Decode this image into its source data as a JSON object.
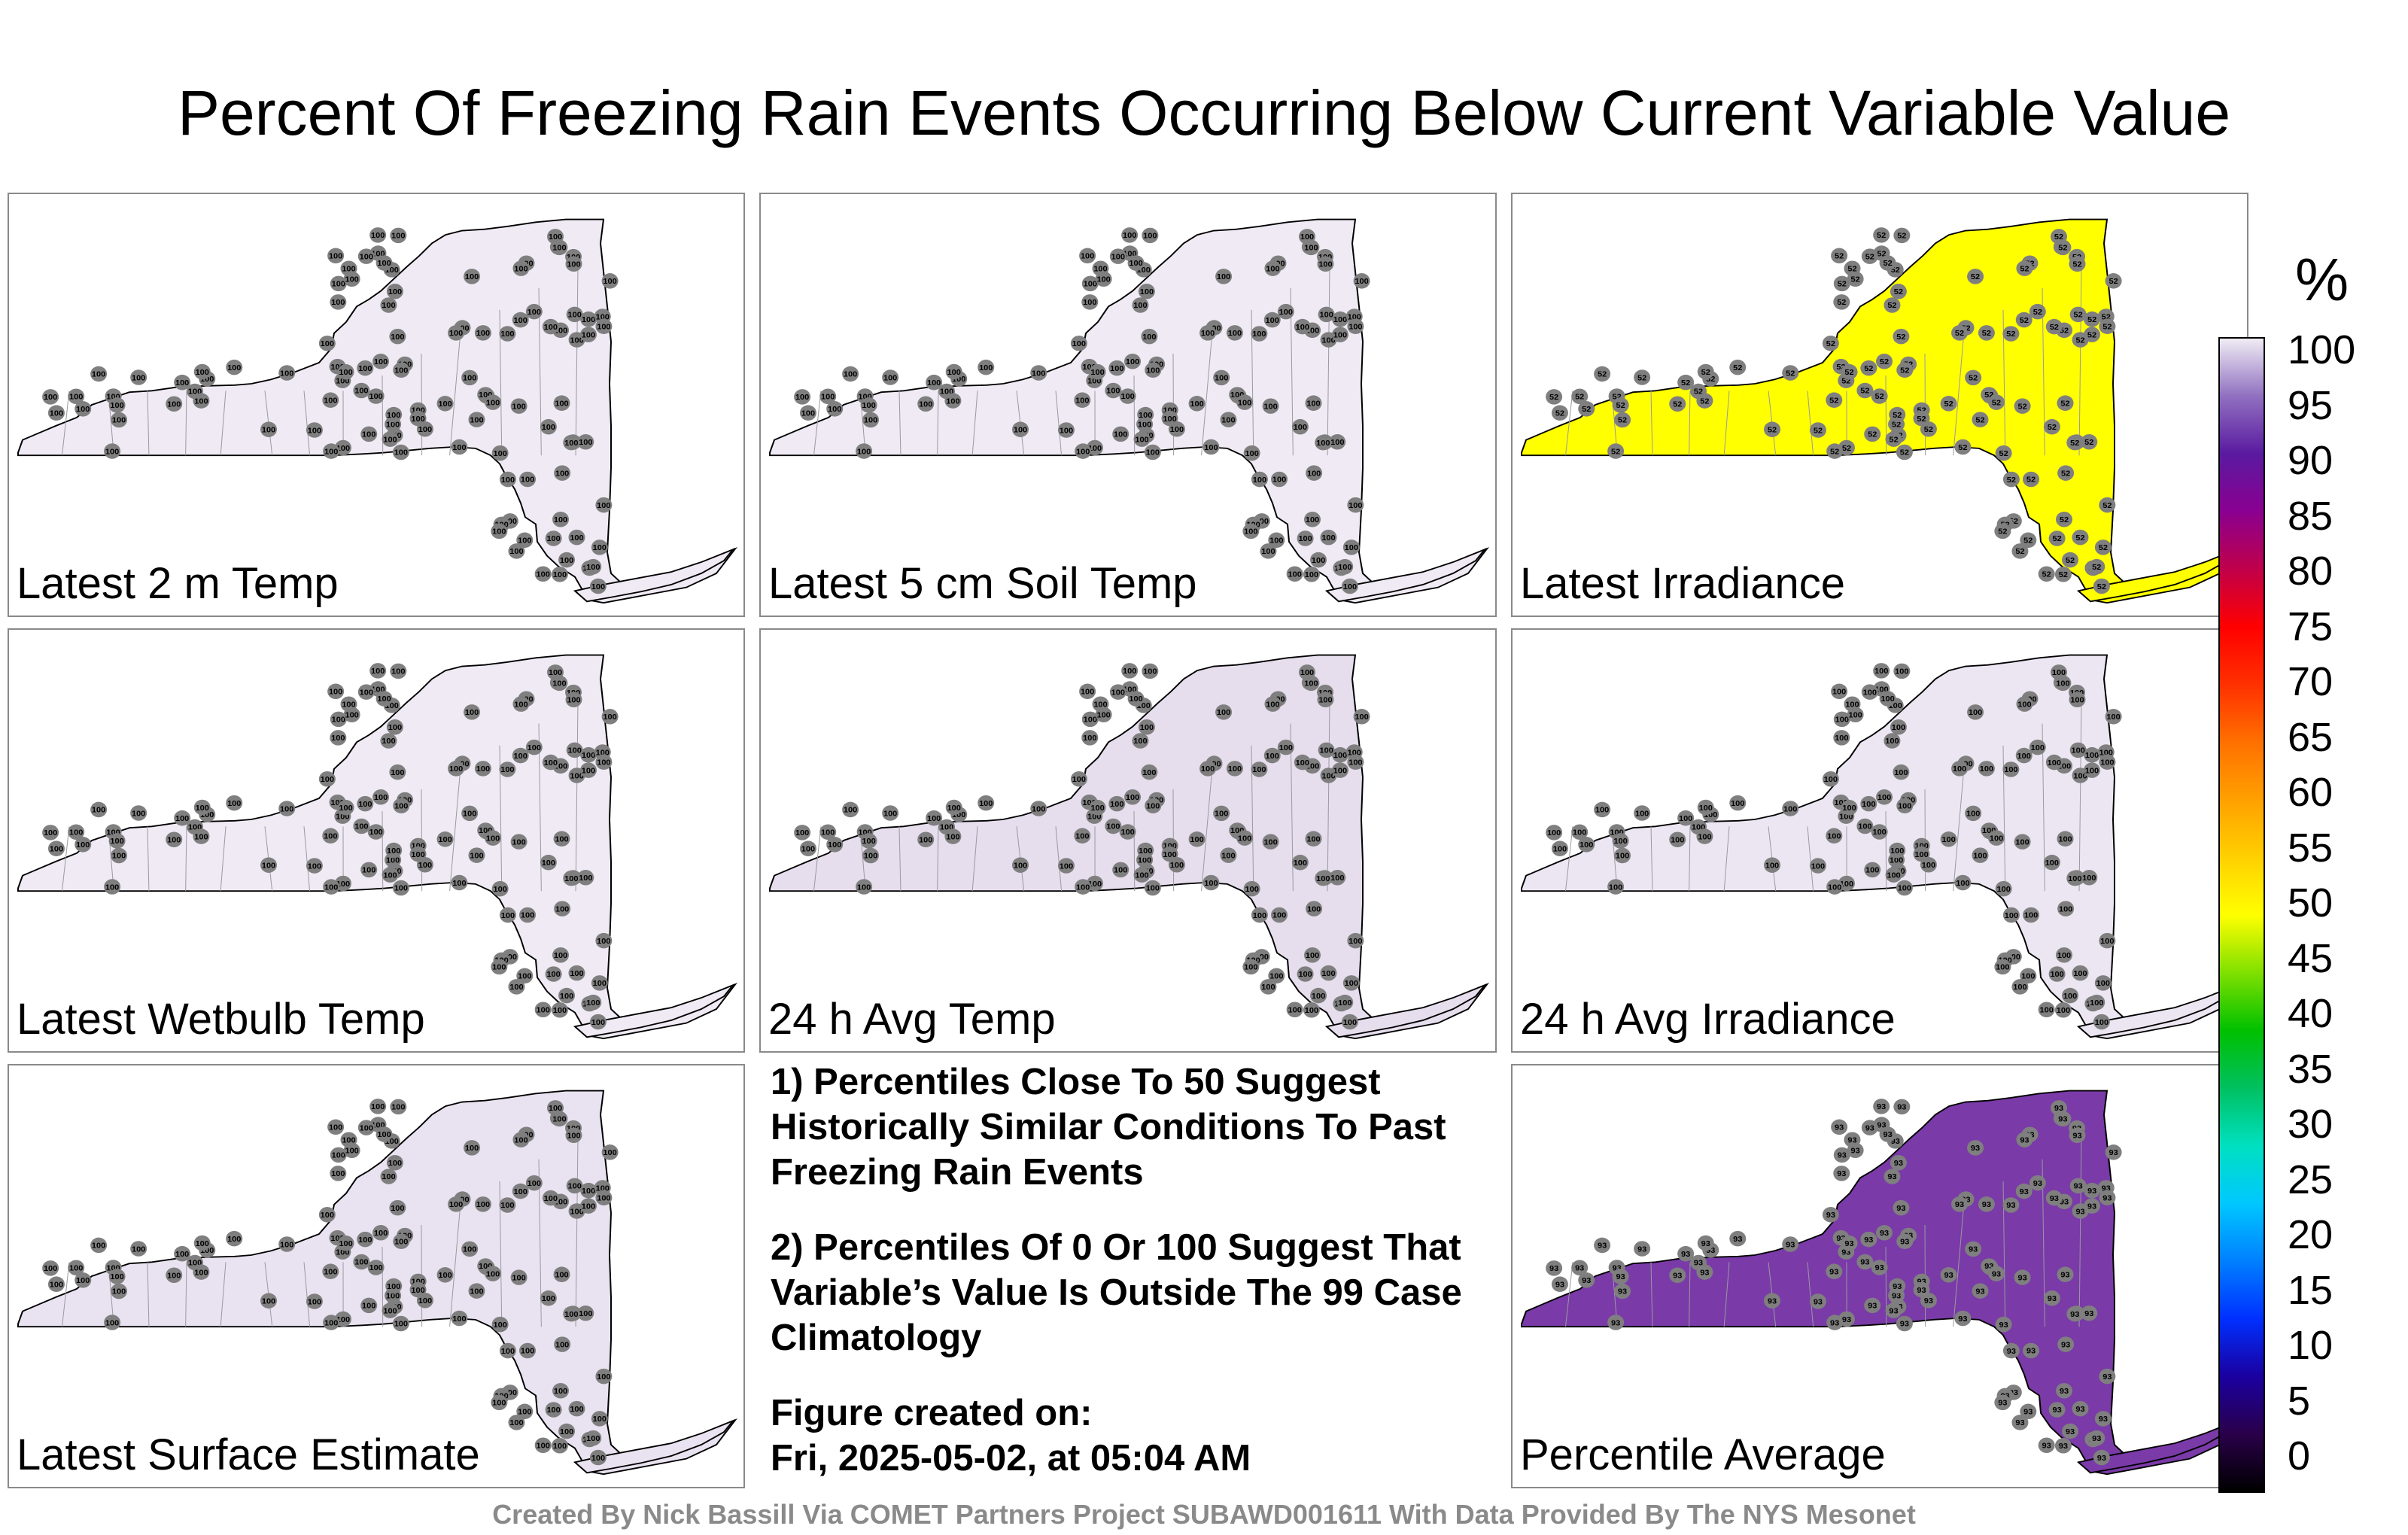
{
  "title": "Percent Of Freezing Rain Events Occurring Below Current Variable Value",
  "colorbar": {
    "unit": "%",
    "ticks": [
      "100",
      "95",
      "90",
      "85",
      "80",
      "75",
      "70",
      "65",
      "60",
      "55",
      "50",
      "45",
      "40",
      "35",
      "30",
      "25",
      "20",
      "15",
      "10",
      "5",
      "0"
    ]
  },
  "panels": [
    {
      "label": "Latest 2 m Temp",
      "fill": "#efeaf4",
      "station_value": "100",
      "stations": 112
    },
    {
      "label": "Latest 5 cm Soil Temp",
      "fill": "#efeaf4",
      "station_value": "100",
      "stations": 112
    },
    {
      "label": "Latest Irradiance",
      "fill": "#ffff00",
      "station_value": "52",
      "stations": 112
    },
    {
      "label": "Latest Wetbulb Temp",
      "fill": "#efeaf4",
      "station_value": "100",
      "stations": 112
    },
    {
      "label": "24 h Avg Temp",
      "fill": "#e6dded",
      "station_value": "100",
      "stations": 112
    },
    {
      "label": "24 h Avg Irradiance",
      "fill": "#ece6f2",
      "station_value": "100",
      "stations": 112
    },
    {
      "label": "Latest Surface Estimate",
      "fill": "#e9e2f0",
      "station_value": "100",
      "stations": 112
    },
    null,
    {
      "label": "Percentile Average",
      "fill": "#7a3aa8",
      "station_value": "93",
      "stations": 112
    }
  ],
  "notes": [
    "1) Percentiles Close To 50 Suggest Historically Similar Conditions To Past Freezing Rain Events",
    "2) Percentiles Of 0 Or 100 Suggest That Variable’s Value Is Outside The 99 Case Climatology"
  ],
  "figure_created_label": "Figure created on:",
  "figure_created_date": "Fri, 2025-05-02, at 05:04 AM",
  "credit": "Created By Nick Bassill Via COMET Partners Project SUBAWD001611 With Data Provided By The NYS Mesonet"
}
